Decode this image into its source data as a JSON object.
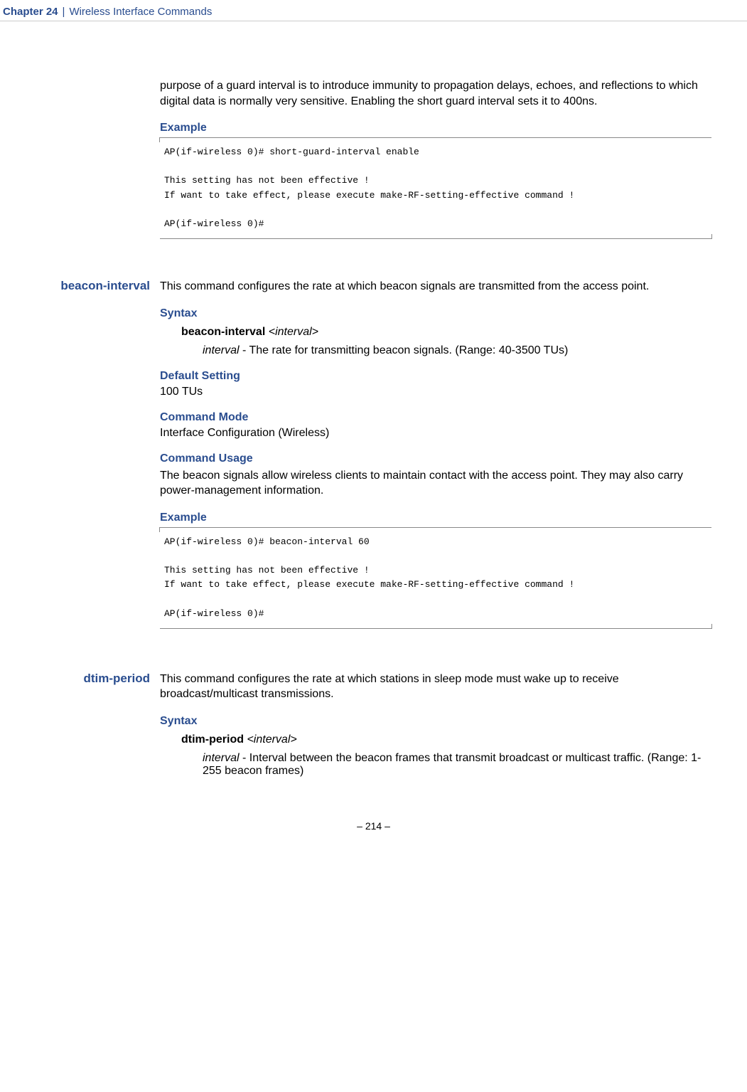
{
  "header": {
    "chapter": "Chapter 24",
    "divider": "|",
    "title": "Wireless Interface Commands"
  },
  "intro_paragraph": "purpose of a guard interval is to introduce immunity to propagation delays, echoes, and reflections to which digital data is normally very sensitive. Enabling the short guard interval sets it to 400ns.",
  "section1": {
    "example_heading": "Example",
    "code": "AP(if-wireless 0)# short-guard-interval enable\n\nThis setting has not been effective !\nIf want to take effect, please execute make-RF-setting-effective command !\n\nAP(if-wireless 0)#"
  },
  "section2": {
    "command_name": "beacon-interval",
    "description": "This command configures the rate at which beacon signals are transmitted from the access point.",
    "syntax_heading": "Syntax",
    "syntax_cmd": "beacon-interval",
    "syntax_param": "<interval>",
    "param_name": "interval",
    "param_desc": " - The rate for transmitting beacon signals. (Range: 40-3500 TUs)",
    "default_heading": "Default Setting",
    "default_value": "100 TUs",
    "mode_heading": "Command Mode",
    "mode_value": "Interface Configuration (Wireless)",
    "usage_heading": "Command Usage",
    "usage_text": "The beacon signals allow wireless clients to maintain contact with the access point. They may also carry power-management information.",
    "example_heading": "Example",
    "code": "AP(if-wireless 0)# beacon-interval 60\n\nThis setting has not been effective !\nIf want to take effect, please execute make-RF-setting-effective command !\n\nAP(if-wireless 0)#"
  },
  "section3": {
    "command_name": "dtim-period",
    "description": "This command configures the rate at which stations in sleep mode must wake up to receive broadcast/multicast transmissions.",
    "syntax_heading": "Syntax",
    "syntax_cmd": "dtim-period",
    "syntax_param": "<interval>",
    "param_name": "interval",
    "param_desc": " - Interval between the beacon frames that transmit broadcast or multicast traffic. (Range: 1-255 beacon frames)"
  },
  "footer": {
    "page": "–  214  –"
  }
}
